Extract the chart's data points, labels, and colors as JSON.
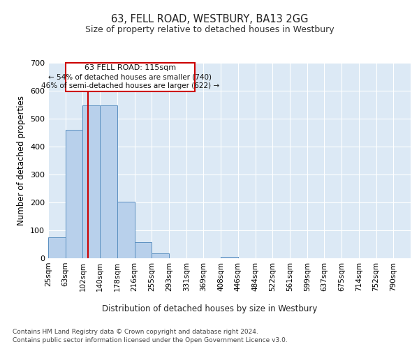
{
  "title": "63, FELL ROAD, WESTBURY, BA13 2GG",
  "subtitle": "Size of property relative to detached houses in Westbury",
  "xlabel": "Distribution of detached houses by size in Westbury",
  "ylabel": "Number of detached properties",
  "footer_line1": "Contains HM Land Registry data © Crown copyright and database right 2024.",
  "footer_line2": "Contains public sector information licensed under the Open Government Licence v3.0.",
  "annotation_line1": "63 FELL ROAD: 115sqm",
  "annotation_line2": "← 54% of detached houses are smaller (740)",
  "annotation_line3": "46% of semi-detached houses are larger (622) →",
  "bin_labels": [
    "25sqm",
    "63sqm",
    "102sqm",
    "140sqm",
    "178sqm",
    "216sqm",
    "255sqm",
    "293sqm",
    "331sqm",
    "369sqm",
    "408sqm",
    "446sqm",
    "484sqm",
    "522sqm",
    "561sqm",
    "599sqm",
    "637sqm",
    "675sqm",
    "714sqm",
    "752sqm",
    "790sqm"
  ],
  "bar_values": [
    75,
    460,
    548,
    548,
    202,
    57,
    18,
    0,
    0,
    0,
    5,
    0,
    0,
    0,
    0,
    0,
    0,
    0,
    0,
    0,
    0
  ],
  "bar_color": "#b8d0eb",
  "bar_edge_color": "#5a8fc0",
  "annotation_box_edge": "#cc0000",
  "red_line_color": "#cc0000",
  "red_line_x": 2.3,
  "background_color": "#dce9f5",
  "grid_color": "#ffffff",
  "ylim": [
    0,
    700
  ],
  "yticks": [
    0,
    100,
    200,
    300,
    400,
    500,
    600,
    700
  ]
}
